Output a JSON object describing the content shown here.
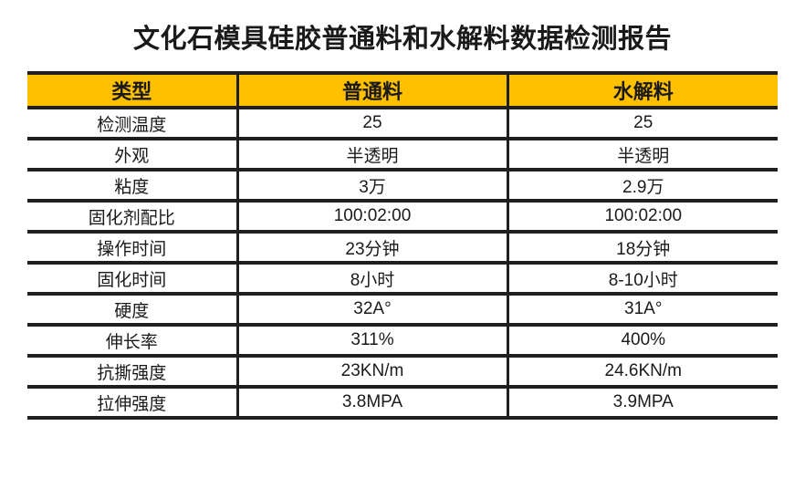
{
  "title": "文化石模具硅胶普通料和水解料数据检测报告",
  "colors": {
    "header_bg": "#FFC000",
    "border": "#1F1F1F",
    "text": "#1A1A1A"
  },
  "table": {
    "header": [
      "类型",
      "普通料",
      "水解料"
    ],
    "rows": [
      [
        "检测温度",
        "25",
        "25"
      ],
      [
        "外观",
        "半透明",
        "半透明"
      ],
      [
        "粘度",
        "3万",
        "2.9万"
      ],
      [
        "固化剂配比",
        "100:02:00",
        "100:02:00"
      ],
      [
        "操作时间",
        "23分钟",
        "18分钟"
      ],
      [
        "固化时间",
        "8小时",
        "8-10小时"
      ],
      [
        "硬度",
        "32A°",
        "31A°"
      ],
      [
        "伸长率",
        "311%",
        "400%"
      ],
      [
        "抗撕强度",
        "23KN/m",
        "24.6KN/m"
      ],
      [
        "拉伸强度",
        "3.8MPA",
        "3.9MPA"
      ]
    ]
  }
}
